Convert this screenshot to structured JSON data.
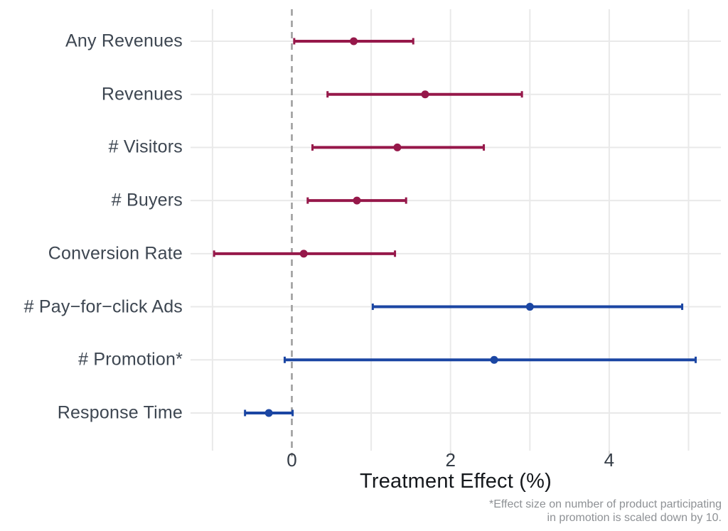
{
  "chart_data": {
    "type": "scatter",
    "subtype": "coefficient-plot-with-confidence-intervals",
    "title": "",
    "xlabel": "Treatment Effect (%)",
    "ylabel": "",
    "xticks": [
      0,
      2,
      4
    ],
    "xlim": [
      -1.3,
      5.4
    ],
    "zero_reference_line": 0,
    "grid": "on",
    "legend": "none",
    "colors": {
      "revenue_outcomes": "#96184a",
      "seller_actions": "#1b46a3",
      "gridline": "#e9e9e9",
      "zero_line": "#9b9b9b"
    },
    "series": [
      {
        "label": "Any Revenues",
        "estimate": 0.78,
        "ci_low": 0.03,
        "ci_high": 1.53,
        "group": "revenue_outcomes"
      },
      {
        "label": "Revenues",
        "estimate": 1.68,
        "ci_low": 0.45,
        "ci_high": 2.9,
        "group": "revenue_outcomes"
      },
      {
        "label": "# Visitors",
        "estimate": 1.33,
        "ci_low": 0.26,
        "ci_high": 2.42,
        "group": "revenue_outcomes"
      },
      {
        "label": "# Buyers",
        "estimate": 0.82,
        "ci_low": 0.2,
        "ci_high": 1.44,
        "group": "revenue_outcomes"
      },
      {
        "label": "Conversion Rate",
        "estimate": 0.15,
        "ci_low": -0.98,
        "ci_high": 1.3,
        "group": "revenue_outcomes"
      },
      {
        "label": "# Pay−for−click Ads",
        "estimate": 3.0,
        "ci_low": 1.02,
        "ci_high": 4.92,
        "group": "seller_actions"
      },
      {
        "label": "# Promotion*",
        "estimate": 2.55,
        "ci_low": -0.09,
        "ci_high": 5.09,
        "group": "seller_actions"
      },
      {
        "label": "Response Time",
        "estimate": -0.29,
        "ci_low": -0.59,
        "ci_high": 0.01,
        "group": "seller_actions"
      }
    ]
  },
  "caption": {
    "line1": "*Effect size on number of product participating",
    "line2": "in promotion is scaled down by 10."
  }
}
